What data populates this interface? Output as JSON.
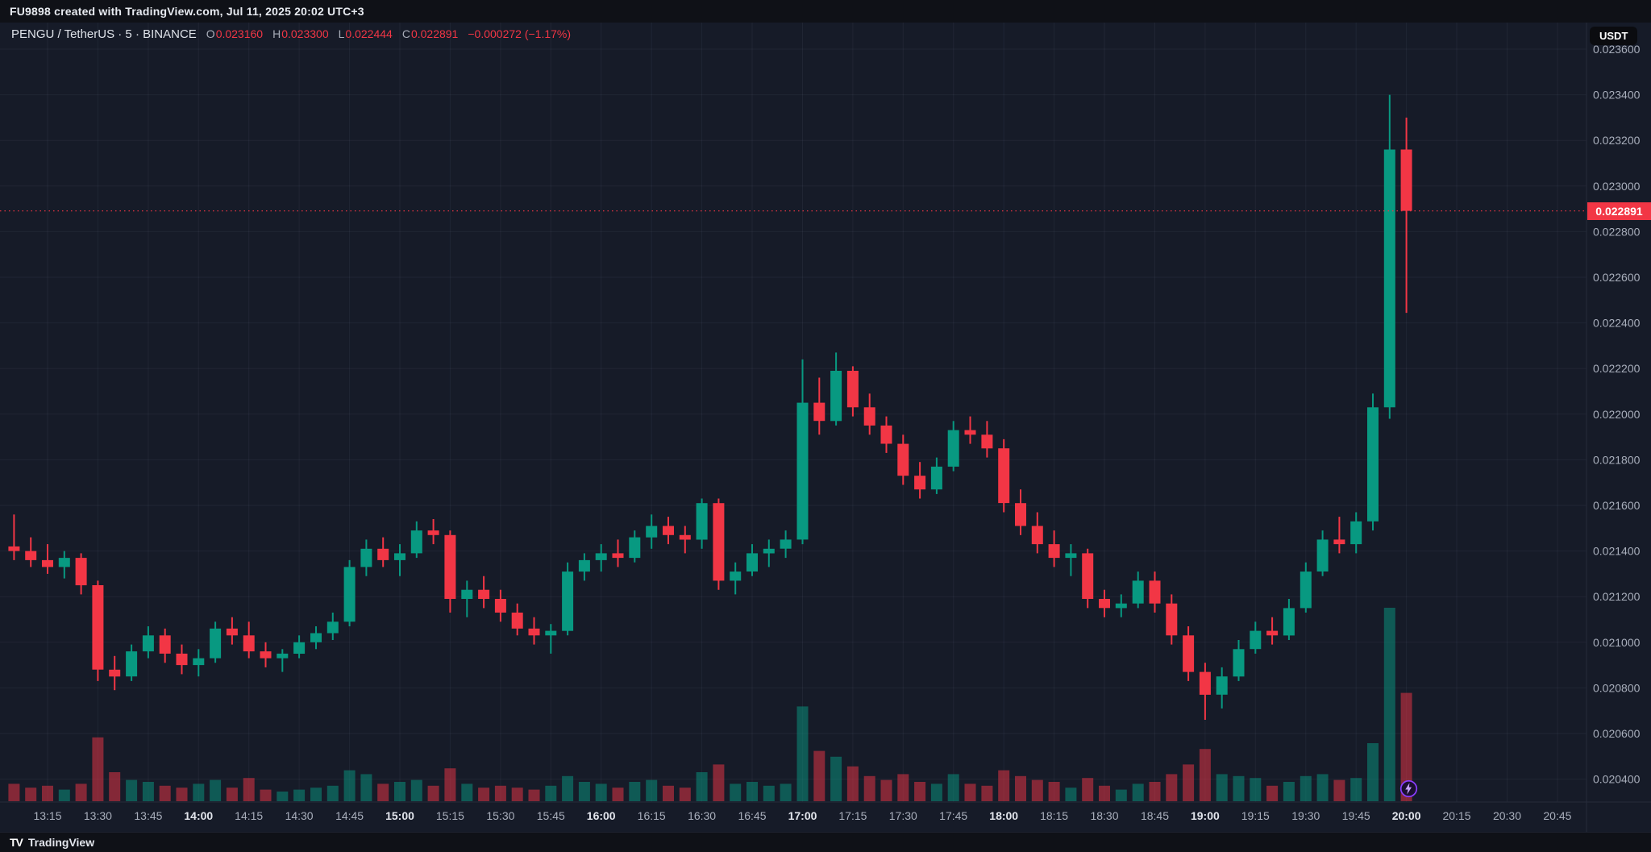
{
  "topbar": {
    "title": "FU9898 created with TradingView.com, Jul 11, 2025 20:02 UTC+3"
  },
  "legend": {
    "symbol_line": "PENGU / TetherUS · 5 · BINANCE",
    "o_label": "O",
    "o_value": "0.023160",
    "h_label": "H",
    "h_value": "0.023300",
    "l_label": "L",
    "l_value": "0.022444",
    "c_label": "C",
    "c_value": "0.022891",
    "change": "−0.000272 (−1.17%)"
  },
  "right_axis": {
    "currency_button": "USDT",
    "last_price_label": "0.022891"
  },
  "footer": {
    "logo_text": "TV",
    "brand": "TradingView"
  },
  "colors": {
    "up": "#089981",
    "down": "#f23645",
    "vol_up": "rgba(8,153,129,0.5)",
    "vol_down": "rgba(242,54,69,0.5)",
    "badge": "#f23645",
    "background": "#161b28",
    "bar_background": "#0f1117",
    "axis_text": "#a9afbc"
  },
  "chart_data": {
    "type": "candlestick",
    "symbol": "PENGU / TetherUS",
    "exchange": "BINANCE",
    "interval": "5m",
    "last_price": 0.022891,
    "current_bar": {
      "open": 0.02316,
      "high": 0.0233,
      "low": 0.022444,
      "close": 0.022891,
      "change": -0.000272,
      "change_pct": -1.17
    },
    "price_axis": {
      "min": 0.0204,
      "max": 0.0236,
      "tick_step": 0.0002,
      "ticks": [
        "0.023600",
        "0.023400",
        "0.023200",
        "0.023000",
        "0.022800",
        "0.022600",
        "0.022400",
        "0.022200",
        "0.022000",
        "0.021800",
        "0.021600",
        "0.021400",
        "0.021200",
        "0.021000",
        "0.020800",
        "0.020600",
        "0.020400"
      ]
    },
    "time_axis": {
      "tick_interval_minutes": 15,
      "labels": [
        {
          "t": "13:15",
          "bold": false
        },
        {
          "t": "13:30",
          "bold": false
        },
        {
          "t": "13:45",
          "bold": false
        },
        {
          "t": "14:00",
          "bold": true
        },
        {
          "t": "14:15",
          "bold": false
        },
        {
          "t": "14:30",
          "bold": false
        },
        {
          "t": "14:45",
          "bold": false
        },
        {
          "t": "15:00",
          "bold": true
        },
        {
          "t": "15:15",
          "bold": false
        },
        {
          "t": "15:30",
          "bold": false
        },
        {
          "t": "15:45",
          "bold": false
        },
        {
          "t": "16:00",
          "bold": true
        },
        {
          "t": "16:15",
          "bold": false
        },
        {
          "t": "16:30",
          "bold": false
        },
        {
          "t": "16:45",
          "bold": false
        },
        {
          "t": "17:00",
          "bold": true
        },
        {
          "t": "17:15",
          "bold": false
        },
        {
          "t": "17:30",
          "bold": false
        },
        {
          "t": "17:45",
          "bold": false
        },
        {
          "t": "18:00",
          "bold": true
        },
        {
          "t": "18:15",
          "bold": false
        },
        {
          "t": "18:30",
          "bold": false
        },
        {
          "t": "18:45",
          "bold": false
        },
        {
          "t": "19:00",
          "bold": true
        },
        {
          "t": "19:15",
          "bold": false
        },
        {
          "t": "19:30",
          "bold": false
        },
        {
          "t": "19:45",
          "bold": false
        },
        {
          "t": "20:00",
          "bold": true
        },
        {
          "t": "20:15",
          "bold": false
        },
        {
          "t": "20:30",
          "bold": false
        },
        {
          "t": "20:45",
          "bold": false
        }
      ]
    },
    "columns": [
      "time",
      "open",
      "high",
      "low",
      "close",
      "volume_rel"
    ],
    "candles": [
      [
        "13:05",
        0.02142,
        0.02156,
        0.02136,
        0.0214,
        90
      ],
      [
        "13:10",
        0.0214,
        0.02146,
        0.02133,
        0.02136,
        70
      ],
      [
        "13:15",
        0.02136,
        0.02143,
        0.0213,
        0.02133,
        80
      ],
      [
        "13:20",
        0.02133,
        0.0214,
        0.02128,
        0.02137,
        60
      ],
      [
        "13:25",
        0.02137,
        0.02139,
        0.02121,
        0.02125,
        90
      ],
      [
        "13:30",
        0.02125,
        0.02127,
        0.02083,
        0.02088,
        330
      ],
      [
        "13:35",
        0.02088,
        0.02094,
        0.02079,
        0.02085,
        150
      ],
      [
        "13:40",
        0.02085,
        0.02099,
        0.02083,
        0.02096,
        110
      ],
      [
        "13:45",
        0.02096,
        0.02107,
        0.02093,
        0.02103,
        100
      ],
      [
        "13:50",
        0.02103,
        0.02106,
        0.02091,
        0.02095,
        80
      ],
      [
        "13:55",
        0.02095,
        0.02099,
        0.02086,
        0.0209,
        70
      ],
      [
        "14:00",
        0.0209,
        0.02097,
        0.02085,
        0.02093,
        90
      ],
      [
        "14:05",
        0.02093,
        0.02109,
        0.02091,
        0.02106,
        110
      ],
      [
        "14:10",
        0.02106,
        0.02111,
        0.02099,
        0.02103,
        70
      ],
      [
        "14:15",
        0.02103,
        0.02109,
        0.02093,
        0.02096,
        120
      ],
      [
        "14:20",
        0.02096,
        0.021,
        0.02089,
        0.02093,
        60
      ],
      [
        "14:25",
        0.02093,
        0.02097,
        0.02087,
        0.02095,
        50
      ],
      [
        "14:30",
        0.02095,
        0.02103,
        0.02093,
        0.021,
        60
      ],
      [
        "14:35",
        0.021,
        0.02107,
        0.02097,
        0.02104,
        70
      ],
      [
        "14:40",
        0.02104,
        0.02113,
        0.02101,
        0.02109,
        80
      ],
      [
        "14:45",
        0.02109,
        0.02136,
        0.02107,
        0.02133,
        160
      ],
      [
        "14:50",
        0.02133,
        0.02145,
        0.02129,
        0.02141,
        140
      ],
      [
        "14:55",
        0.02141,
        0.02146,
        0.02133,
        0.02136,
        90
      ],
      [
        "15:00",
        0.02136,
        0.02143,
        0.02129,
        0.02139,
        100
      ],
      [
        "15:05",
        0.02139,
        0.02153,
        0.02137,
        0.02149,
        110
      ],
      [
        "15:10",
        0.02149,
        0.02154,
        0.02143,
        0.02147,
        80
      ],
      [
        "15:15",
        0.02147,
        0.02149,
        0.02113,
        0.02119,
        170
      ],
      [
        "15:20",
        0.02119,
        0.02127,
        0.02111,
        0.02123,
        90
      ],
      [
        "15:25",
        0.02123,
        0.02129,
        0.02115,
        0.02119,
        70
      ],
      [
        "15:30",
        0.02119,
        0.02123,
        0.02109,
        0.02113,
        80
      ],
      [
        "15:35",
        0.02113,
        0.02117,
        0.02103,
        0.02106,
        70
      ],
      [
        "15:40",
        0.02106,
        0.02111,
        0.02099,
        0.02103,
        60
      ],
      [
        "15:45",
        0.02103,
        0.02108,
        0.02095,
        0.02105,
        80
      ],
      [
        "15:50",
        0.02105,
        0.02135,
        0.02103,
        0.02131,
        130
      ],
      [
        "15:55",
        0.02131,
        0.02139,
        0.02127,
        0.02136,
        100
      ],
      [
        "16:00",
        0.02136,
        0.02143,
        0.02131,
        0.02139,
        90
      ],
      [
        "16:05",
        0.02139,
        0.02145,
        0.02133,
        0.02137,
        70
      ],
      [
        "16:10",
        0.02137,
        0.02149,
        0.02135,
        0.02146,
        100
      ],
      [
        "16:15",
        0.02146,
        0.02156,
        0.02141,
        0.02151,
        110
      ],
      [
        "16:20",
        0.02151,
        0.02155,
        0.02143,
        0.02147,
        80
      ],
      [
        "16:25",
        0.02147,
        0.02151,
        0.02139,
        0.02145,
        70
      ],
      [
        "16:30",
        0.02145,
        0.02163,
        0.02141,
        0.02161,
        150
      ],
      [
        "16:35",
        0.02161,
        0.02163,
        0.02123,
        0.02127,
        190
      ],
      [
        "16:40",
        0.02127,
        0.02135,
        0.02121,
        0.02131,
        90
      ],
      [
        "16:45",
        0.02131,
        0.02143,
        0.02129,
        0.02139,
        100
      ],
      [
        "16:50",
        0.02139,
        0.02145,
        0.02133,
        0.02141,
        80
      ],
      [
        "16:55",
        0.02141,
        0.02149,
        0.02137,
        0.02145,
        90
      ],
      [
        "17:00",
        0.02145,
        0.02224,
        0.02143,
        0.02205,
        490
      ],
      [
        "17:05",
        0.02205,
        0.02216,
        0.02191,
        0.02197,
        260
      ],
      [
        "17:10",
        0.02197,
        0.02227,
        0.02195,
        0.02219,
        230
      ],
      [
        "17:15",
        0.02219,
        0.02221,
        0.02199,
        0.02203,
        180
      ],
      [
        "17:20",
        0.02203,
        0.02209,
        0.02191,
        0.02195,
        130
      ],
      [
        "17:25",
        0.02195,
        0.02199,
        0.02183,
        0.02187,
        110
      ],
      [
        "17:30",
        0.02187,
        0.02191,
        0.02169,
        0.02173,
        140
      ],
      [
        "17:35",
        0.02173,
        0.02179,
        0.02163,
        0.02167,
        100
      ],
      [
        "17:40",
        0.02167,
        0.02181,
        0.02165,
        0.02177,
        90
      ],
      [
        "17:45",
        0.02177,
        0.02197,
        0.02175,
        0.02193,
        140
      ],
      [
        "17:50",
        0.02193,
        0.02199,
        0.02187,
        0.02191,
        90
      ],
      [
        "17:55",
        0.02191,
        0.02197,
        0.02181,
        0.02185,
        80
      ],
      [
        "18:00",
        0.02185,
        0.02189,
        0.02157,
        0.02161,
        160
      ],
      [
        "18:05",
        0.02161,
        0.02167,
        0.02147,
        0.02151,
        130
      ],
      [
        "18:10",
        0.02151,
        0.02157,
        0.02139,
        0.02143,
        110
      ],
      [
        "18:15",
        0.02143,
        0.02149,
        0.02133,
        0.02137,
        100
      ],
      [
        "18:20",
        0.02137,
        0.02143,
        0.02129,
        0.02139,
        70
      ],
      [
        "18:25",
        0.02139,
        0.02141,
        0.02115,
        0.02119,
        120
      ],
      [
        "18:30",
        0.02119,
        0.02123,
        0.02111,
        0.02115,
        80
      ],
      [
        "18:35",
        0.02115,
        0.02121,
        0.02111,
        0.02117,
        60
      ],
      [
        "18:40",
        0.02117,
        0.02131,
        0.02115,
        0.02127,
        90
      ],
      [
        "18:45",
        0.02127,
        0.02131,
        0.02113,
        0.02117,
        100
      ],
      [
        "18:50",
        0.02117,
        0.02121,
        0.02099,
        0.02103,
        140
      ],
      [
        "18:55",
        0.02103,
        0.02107,
        0.02083,
        0.02087,
        190
      ],
      [
        "19:00",
        0.02087,
        0.02091,
        0.02066,
        0.02077,
        270
      ],
      [
        "19:05",
        0.02077,
        0.02089,
        0.02071,
        0.02085,
        140
      ],
      [
        "19:10",
        0.02085,
        0.02101,
        0.02083,
        0.02097,
        130
      ],
      [
        "19:15",
        0.02097,
        0.02109,
        0.02095,
        0.02105,
        120
      ],
      [
        "19:20",
        0.02105,
        0.02111,
        0.02099,
        0.02103,
        80
      ],
      [
        "19:25",
        0.02103,
        0.02119,
        0.02101,
        0.02115,
        100
      ],
      [
        "19:30",
        0.02115,
        0.02135,
        0.02113,
        0.02131,
        130
      ],
      [
        "19:35",
        0.02131,
        0.02149,
        0.02129,
        0.02145,
        140
      ],
      [
        "19:40",
        0.02145,
        0.02155,
        0.02139,
        0.02143,
        110
      ],
      [
        "19:45",
        0.02143,
        0.02157,
        0.02139,
        0.02153,
        120
      ],
      [
        "19:50",
        0.02153,
        0.02209,
        0.02149,
        0.02203,
        300
      ],
      [
        "19:55",
        0.02203,
        0.0234,
        0.02198,
        0.02316,
        1000
      ],
      [
        "20:00",
        0.02316,
        0.0233,
        0.022444,
        0.022891,
        560
      ]
    ]
  }
}
